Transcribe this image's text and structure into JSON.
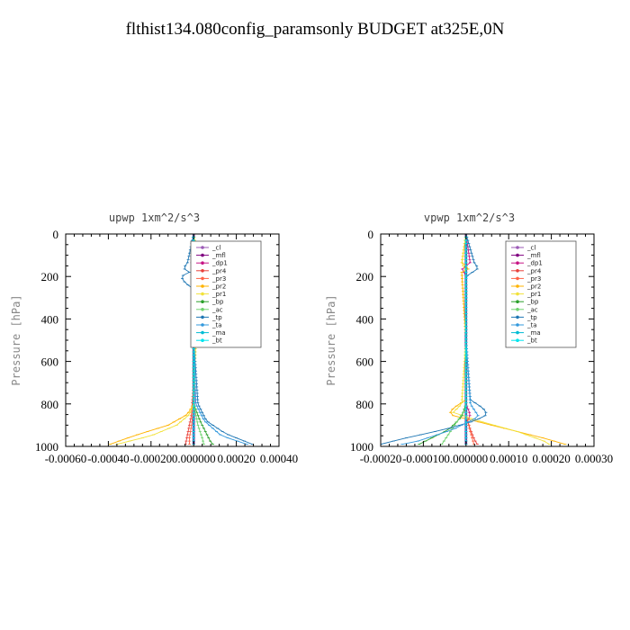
{
  "title": "flthist134.080config_paramsonly  BUDGET at325E,0N",
  "colors": {
    "_cl": "#9b59b6",
    "_mfl": "#800080",
    "_dp1": "#c71585",
    "_pr4": "#e8413c",
    "_pr3": "#ff6347",
    "_pr2": "#ffb300",
    "_pr1": "#f2e23a",
    "_bp": "#2ca02c",
    "_ac": "#6fd36f",
    "_tp": "#1f77b4",
    "_ta": "#3399dd",
    "_ma": "#00bcd4",
    "_bt": "#00e5ee"
  },
  "chart_data": [
    {
      "type": "line",
      "title": "upwp   1xm^2/s^3",
      "xlabel": "",
      "ylabel": "Pressure [hPa]",
      "xlim": [
        -0.0006,
        0.0004
      ],
      "ylim": [
        1000,
        0
      ],
      "xticks": [
        "-0.00060",
        "-0.00040",
        "-0.00020",
        "0.000000",
        "0.00020",
        "0.00040"
      ],
      "yticks": [
        "0",
        "200",
        "400",
        "600",
        "800",
        "1000"
      ],
      "legend_position": "top-right",
      "legend": [
        "_cl",
        "_mfl",
        "_dp1",
        "_pr4",
        "_pr3",
        "_pr2",
        "_pr1",
        "_bp",
        "_ac",
        "_tp",
        "_ta",
        "_ma",
        "_bt"
      ],
      "series": [
        {
          "name": "_cl",
          "p": [
            0,
            500,
            1000
          ],
          "values": [
            0,
            0,
            0
          ]
        },
        {
          "name": "_mfl",
          "p": [
            0,
            500,
            1000
          ],
          "values": [
            0,
            0,
            0
          ]
        },
        {
          "name": "_dp1",
          "p": [
            0,
            140,
            160,
            200,
            800,
            1000
          ],
          "values": [
            0,
            -1e-05,
            1e-05,
            0,
            0,
            0
          ]
        },
        {
          "name": "_pr4",
          "p": [
            0,
            500,
            700,
            850,
            950,
            1000
          ],
          "values": [
            0,
            0,
            0,
            -1e-05,
            -3e-05,
            -4e-05
          ]
        },
        {
          "name": "_pr3",
          "p": [
            0,
            500,
            800,
            900,
            960,
            1000
          ],
          "values": [
            0,
            0,
            0,
            -1e-05,
            -2e-05,
            -2e-05
          ]
        },
        {
          "name": "_pr2",
          "p": [
            0,
            140,
            160,
            200,
            230,
            800,
            850,
            900,
            950,
            1000
          ],
          "values": [
            0,
            2e-05,
            -1e-05,
            3e-05,
            1e-05,
            0,
            -3e-05,
            -0.00012,
            -0.00028,
            -0.00042
          ]
        },
        {
          "name": "_pr1",
          "p": [
            0,
            130,
            160,
            200,
            800,
            850,
            900,
            950,
            1000
          ],
          "values": [
            0,
            2e-05,
            4e-05,
            2e-05,
            0,
            -2e-05,
            -8e-05,
            -0.0002,
            -0.0004
          ]
        },
        {
          "name": "_bp",
          "p": [
            0,
            500,
            800,
            880,
            940,
            980,
            1000
          ],
          "values": [
            0,
            0,
            0,
            3e-05,
            6e-05,
            8e-05,
            0.0001
          ]
        },
        {
          "name": "_ac",
          "p": [
            0,
            500,
            800,
            900,
            960,
            1000
          ],
          "values": [
            0,
            0,
            0,
            2e-05,
            4e-05,
            5e-05
          ]
        },
        {
          "name": "_tp",
          "p": [
            0,
            140,
            160,
            180,
            200,
            230,
            260,
            500,
            800,
            880,
            940,
            1000
          ],
          "values": [
            0,
            -3e-05,
            -5e-05,
            -2e-05,
            -6e-05,
            -4e-05,
            0,
            0,
            2e-05,
            6e-05,
            0.00015,
            0.0003
          ]
        },
        {
          "name": "_ta",
          "p": [
            0,
            500,
            800,
            880,
            950,
            1000
          ],
          "values": [
            0,
            0,
            1e-05,
            5e-05,
            0.00013,
            0.00028
          ]
        },
        {
          "name": "_ma",
          "p": [
            0,
            500,
            1000
          ],
          "values": [
            0,
            0,
            0
          ]
        },
        {
          "name": "_bt",
          "p": [
            0,
            500,
            1000
          ],
          "values": [
            0,
            0,
            0
          ]
        }
      ]
    },
    {
      "type": "line",
      "title": "vpwp   1xm^2/s^3",
      "xlabel": "",
      "ylabel": "Pressure [hPa]",
      "xlim": [
        -0.0002,
        0.0003
      ],
      "ylim": [
        1000,
        0
      ],
      "xticks": [
        "-0.00020",
        "-0.00010",
        "0.000000",
        "0.00010",
        "0.00020",
        "0.00030"
      ],
      "yticks": [
        "0",
        "200",
        "400",
        "600",
        "800",
        "1000"
      ],
      "legend_position": "top-right",
      "legend": [
        "_cl",
        "_mfl",
        "_dp1",
        "_pr4",
        "_pr3",
        "_pr2",
        "_pr1",
        "_bp",
        "_ac",
        "_tp",
        "_ta",
        "_ma",
        "_bt"
      ],
      "series": [
        {
          "name": "_cl",
          "p": [
            0,
            500,
            1000
          ],
          "values": [
            0,
            0,
            0
          ]
        },
        {
          "name": "_mfl",
          "p": [
            0,
            500,
            1000
          ],
          "values": [
            0,
            0,
            0
          ]
        },
        {
          "name": "_dp1",
          "p": [
            0,
            140,
            160,
            200,
            800,
            850,
            900,
            1000
          ],
          "values": [
            0,
            1e-05,
            -1e-05,
            0,
            0,
            1e-05,
            0,
            0
          ]
        },
        {
          "name": "_pr4",
          "p": [
            0,
            500,
            850,
            920,
            970,
            1000
          ],
          "values": [
            0,
            0,
            0,
            1e-05,
            2e-05,
            3e-05
          ]
        },
        {
          "name": "_pr3",
          "p": [
            0,
            500,
            850,
            930,
            1000
          ],
          "values": [
            0,
            0,
            0,
            1e-05,
            2e-05
          ]
        },
        {
          "name": "_pr2",
          "p": [
            0,
            140,
            160,
            180,
            500,
            780,
            820,
            850,
            880,
            920,
            960,
            1000
          ],
          "values": [
            0,
            -1e-05,
            1e-05,
            -1e-05,
            0,
            0,
            -3e-05,
            -4e-05,
            2e-05,
            0.0001,
            0.00018,
            0.00025
          ]
        },
        {
          "name": "_pr1",
          "p": [
            0,
            140,
            170,
            500,
            800,
            840,
            880,
            930,
            980,
            1000
          ],
          "values": [
            0,
            -1e-05,
            0,
            0,
            -1e-05,
            -3e-05,
            3e-05,
            0.00012,
            0.00019,
            0.0002
          ]
        },
        {
          "name": "_bp",
          "p": [
            0,
            500,
            800,
            860,
            920,
            970,
            1000
          ],
          "values": [
            0,
            0,
            0,
            -1e-05,
            -4e-05,
            -9e-05,
            -0.00012
          ]
        },
        {
          "name": "_ac",
          "p": [
            0,
            500,
            820,
            880,
            940,
            1000
          ],
          "values": [
            0,
            0,
            0,
            -2e-05,
            -4e-05,
            -6e-05
          ]
        },
        {
          "name": "_tp",
          "p": [
            0,
            140,
            160,
            200,
            500,
            780,
            820,
            850,
            880,
            920,
            960,
            1000
          ],
          "values": [
            0,
            2e-05,
            3e-05,
            0,
            0,
            1e-05,
            4e-05,
            5e-05,
            2e-05,
            -5e-05,
            -0.00014,
            -0.00022
          ]
        },
        {
          "name": "_ta",
          "p": [
            0,
            500,
            800,
            860,
            920,
            980,
            1000
          ],
          "values": [
            0,
            0,
            1e-05,
            3e-05,
            -3e-05,
            -0.00012,
            -0.00018
          ]
        },
        {
          "name": "_ma",
          "p": [
            0,
            500,
            1000
          ],
          "values": [
            0,
            0,
            0
          ]
        },
        {
          "name": "_bt",
          "p": [
            0,
            500,
            1000
          ],
          "values": [
            0,
            0,
            0
          ]
        }
      ]
    }
  ]
}
